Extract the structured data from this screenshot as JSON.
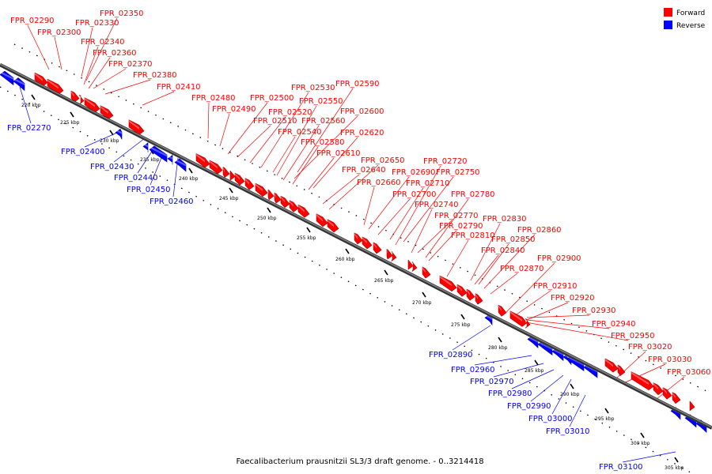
{
  "caption": "Faecalibacterium prausnitzii SL3/3 draft genome. - 0..3214418",
  "legend": [
    {
      "label": "Forward",
      "color": "#ff0000"
    },
    {
      "label": "Reverse",
      "color": "#0000ff"
    }
  ],
  "colors": {
    "forward": "#ff0000",
    "reverse": "#0000ff",
    "backbone": "#808080"
  },
  "ticks": [
    "220 kbp",
    "225 kbp",
    "230 kbp",
    "235 kbp",
    "240 kbp",
    "245 kbp",
    "250 kbp",
    "255 kbp",
    "260 kbp",
    "265 kbp",
    "270 kbp",
    "275 kbp",
    "280 kbp",
    "285 kbp",
    "290 kbp",
    "295 kbp",
    "300 kbp",
    "305 kbp"
  ],
  "forward_genes": [
    "FPR_02290",
    "FPR_02300",
    "FPR_02330",
    "FPR_02340",
    "FPR_02350",
    "FPR_02360",
    "FPR_02370",
    "FPR_02380",
    "FPR_02410",
    "FPR_02480",
    "FPR_02490",
    "FPR_02500",
    "FPR_02510",
    "FPR_02520",
    "FPR_02530",
    "FPR_02540",
    "FPR_02550",
    "FPR_02560",
    "FPR_02580",
    "FPR_02590",
    "FPR_02600",
    "FPR_02610",
    "FPR_02620",
    "FPR_02640",
    "FPR_02650",
    "FPR_02660",
    "FPR_02690",
    "FPR_02700",
    "FPR_02710",
    "FPR_02720",
    "FPR_02740",
    "FPR_02750",
    "FPR_02770",
    "FPR_02780",
    "FPR_02790",
    "FPR_02810",
    "FPR_02830",
    "FPR_02840",
    "FPR_02850",
    "FPR_02860",
    "FPR_02870",
    "FPR_02900",
    "FPR_02910",
    "FPR_02920",
    "FPR_02930",
    "FPR_02940",
    "FPR_02950",
    "FPR_03020",
    "FPR_03030",
    "FPR_03060"
  ],
  "reverse_genes": [
    "FPR_02270",
    "FPR_02400",
    "FPR_02430",
    "FPR_02440",
    "FPR_02450",
    "FPR_02460",
    "FPR_02890",
    "FPR_02960",
    "FPR_02970",
    "FPR_02980",
    "FPR_02990",
    "FPR_03000",
    "FPR_03010",
    "FPR_03100"
  ]
}
